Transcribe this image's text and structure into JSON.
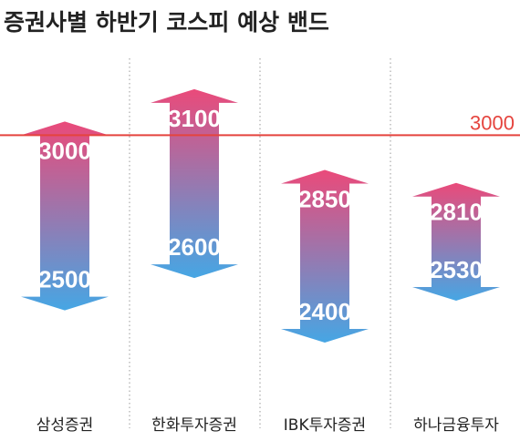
{
  "chart_data": {
    "type": "range-arrow",
    "title": "증권사별 하반기 코스피 예상 밴드",
    "categories": [
      "삼성증권",
      "한화투자증권",
      "IBK투자증권",
      "하나금융투자"
    ],
    "series": [
      {
        "high": 3000,
        "low": 2500
      },
      {
        "high": 3100,
        "low": 2600
      },
      {
        "high": 2850,
        "low": 2400
      },
      {
        "high": 2810,
        "low": 2530
      }
    ],
    "reference_line": {
      "value": 3000,
      "label": "3000",
      "color": "#e5443e"
    },
    "gradient": {
      "top": "#ea4a7a",
      "bottom": "#46a6e4"
    },
    "ylim": [
      2290,
      3255
    ],
    "grid": "vertical-dotted-separators"
  }
}
